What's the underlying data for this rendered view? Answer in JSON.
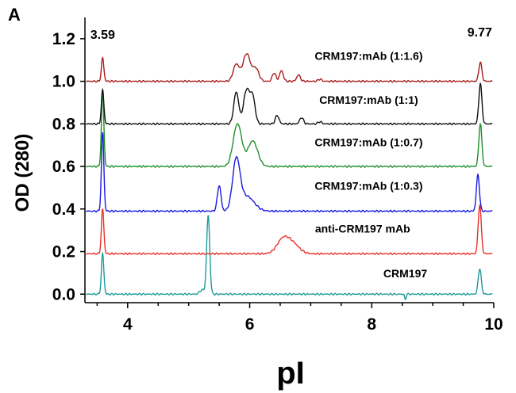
{
  "chart_data": {
    "type": "line",
    "panel_label": "A",
    "xlabel": "pI",
    "ylabel": "OD (280)",
    "xlim": [
      3.3,
      10.0
    ],
    "ylim": [
      -0.04,
      1.3
    ],
    "xticks": [
      4,
      6,
      8,
      10
    ],
    "yticks": [
      0.0,
      0.2,
      0.4,
      0.6,
      0.8,
      1.0,
      1.2
    ],
    "ytick_labels": [
      "0.0",
      "0.2",
      "0.4",
      "0.6",
      "0.8",
      "1.0",
      "1.2"
    ],
    "grid": false,
    "peak_annotations": [
      {
        "text": "3.59",
        "x": 3.59,
        "y": 1.2
      },
      {
        "text": "9.77",
        "x": 9.77,
        "y": 1.21
      }
    ],
    "series": [
      {
        "name": "CRM197",
        "color": "#1f9a9a",
        "baseline": 0.0,
        "peaks": [
          [
            3.59,
            0.19,
            0.02
          ],
          [
            5.32,
            0.37,
            0.025
          ],
          [
            5.22,
            0.02,
            0.04
          ],
          [
            9.77,
            0.12,
            0.025
          ]
        ],
        "dips": [
          [
            8.55,
            -0.025,
            0.012
          ]
        ],
        "label_x": 8.55,
        "label_y": 0.08
      },
      {
        "name": "anti-CRM197 mAb",
        "color": "#e8302a",
        "baseline": 0.19,
        "peaks": [
          [
            3.59,
            0.21,
            0.02
          ],
          [
            6.55,
            0.07,
            0.1
          ],
          [
            6.72,
            0.04,
            0.1
          ],
          [
            9.77,
            0.23,
            0.025
          ]
        ],
        "dips": [],
        "label_x": 7.85,
        "label_y": 0.29
      },
      {
        "name": "CRM197:mAb (1:0.3)",
        "color": "#1a1ae0",
        "baseline": 0.39,
        "peaks": [
          [
            3.59,
            0.37,
            0.02
          ],
          [
            5.5,
            0.12,
            0.03
          ],
          [
            5.78,
            0.23,
            0.06
          ],
          [
            5.95,
            0.07,
            0.12
          ],
          [
            9.74,
            0.17,
            0.025
          ]
        ],
        "dips": [],
        "label_x": 7.95,
        "label_y": 0.49
      },
      {
        "name": "CRM197:mAb (1:0.7)",
        "color": "#1f8f2a",
        "baseline": 0.6,
        "peaks": [
          [
            3.59,
            0.35,
            0.02
          ],
          [
            5.8,
            0.2,
            0.07
          ],
          [
            6.05,
            0.12,
            0.08
          ],
          [
            9.78,
            0.2,
            0.025
          ]
        ],
        "dips": [],
        "label_x": 7.95,
        "label_y": 0.695
      },
      {
        "name": "CRM197:mAb (1:1)",
        "color": "#111111",
        "baseline": 0.8,
        "peaks": [
          [
            3.59,
            0.16,
            0.02
          ],
          [
            5.78,
            0.15,
            0.04
          ],
          [
            5.95,
            0.16,
            0.05
          ],
          [
            6.05,
            0.12,
            0.04
          ],
          [
            6.45,
            0.04,
            0.03
          ],
          [
            6.85,
            0.03,
            0.03
          ],
          [
            7.15,
            0.01,
            0.03
          ],
          [
            9.78,
            0.19,
            0.025
          ]
        ],
        "dips": [],
        "label_x": 7.95,
        "label_y": 0.895
      },
      {
        "name": "CRM197:mAb (1:1.6)",
        "color": "#a81c1c",
        "baseline": 1.0,
        "peaks": [
          [
            3.59,
            0.11,
            0.02
          ],
          [
            5.78,
            0.08,
            0.05
          ],
          [
            5.95,
            0.13,
            0.06
          ],
          [
            6.1,
            0.06,
            0.05
          ],
          [
            6.4,
            0.04,
            0.03
          ],
          [
            6.52,
            0.05,
            0.03
          ],
          [
            6.8,
            0.03,
            0.03
          ],
          [
            7.15,
            0.01,
            0.03
          ],
          [
            9.78,
            0.09,
            0.025
          ]
        ],
        "dips": [],
        "label_x": 7.95,
        "label_y": 1.1
      }
    ]
  }
}
